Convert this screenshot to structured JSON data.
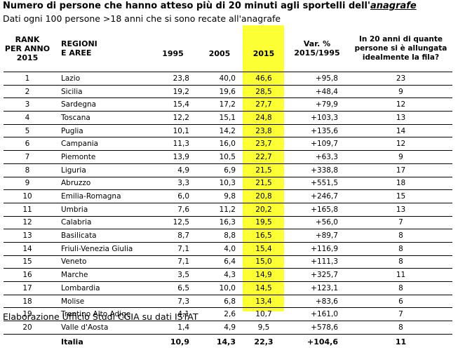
{
  "title": {
    "main": "Numero di persone che hanno atteso più di 20 minuti agli sportelli dell'",
    "emph": "anagrafe"
  },
  "subtitle": "Dati ogni 100 persone >18 anni che si sono recate all'anagrafe",
  "headers": {
    "rank": [
      "RANK",
      "PER ANNO",
      "2015"
    ],
    "region": [
      "REGIONI",
      "E AREE"
    ],
    "y1995": "1995",
    "y2005": "2005",
    "y2015": "2015",
    "var": [
      "Var. %",
      "2015/1995"
    ],
    "question": [
      "In 20 anni di quante",
      "persone si è allungata",
      "idealmente la fila?"
    ]
  },
  "highlight_color": "#fcff33",
  "rows": [
    {
      "rank": "1",
      "region": "Lazio",
      "y1995": "23,8",
      "y2005": "40,0",
      "y2015": "46,6",
      "var": "+95,8",
      "people": "23"
    },
    {
      "rank": "2",
      "region": "Sicilia",
      "y1995": "19,2",
      "y2005": "19,6",
      "y2015": "28,5",
      "var": "+48,4",
      "people": "9"
    },
    {
      "rank": "3",
      "region": "Sardegna",
      "y1995": "15,4",
      "y2005": "17,2",
      "y2015": "27,7",
      "var": "+79,9",
      "people": "12"
    },
    {
      "rank": "4",
      "region": "Toscana",
      "y1995": "12,2",
      "y2005": "15,1",
      "y2015": "24,8",
      "var": "+103,3",
      "people": "13"
    },
    {
      "rank": "5",
      "region": "Puglia",
      "y1995": "10,1",
      "y2005": "14,2",
      "y2015": "23,8",
      "var": "+135,6",
      "people": "14"
    },
    {
      "rank": "6",
      "region": "Campania",
      "y1995": "11,3",
      "y2005": "16,0",
      "y2015": "23,7",
      "var": "+109,7",
      "people": "12"
    },
    {
      "rank": "7",
      "region": "Piemonte",
      "y1995": "13,9",
      "y2005": "10,5",
      "y2015": "22,7",
      "var": "+63,3",
      "people": "9"
    },
    {
      "rank": "8",
      "region": "Liguria",
      "y1995": "4,9",
      "y2005": "6,9",
      "y2015": "21,5",
      "var": "+338,8",
      "people": "17"
    },
    {
      "rank": "9",
      "region": "Abruzzo",
      "y1995": "3,3",
      "y2005": "10,3",
      "y2015": "21,5",
      "var": "+551,5",
      "people": "18"
    },
    {
      "rank": "10",
      "region": "Emilia-Romagna",
      "y1995": "6,0",
      "y2005": "9,8",
      "y2015": "20,8",
      "var": "+246,7",
      "people": "15"
    },
    {
      "rank": "11",
      "region": "Umbria",
      "y1995": "7,6",
      "y2005": "11,2",
      "y2015": "20,2",
      "var": "+165,8",
      "people": "13"
    },
    {
      "rank": "12",
      "region": "Calabria",
      "y1995": "12,5",
      "y2005": "16,3",
      "y2015": "19,5",
      "var": "+56,0",
      "people": "7"
    },
    {
      "rank": "13",
      "region": "Basilicata",
      "y1995": "8,7",
      "y2005": "8,8",
      "y2015": "16,5",
      "var": "+89,7",
      "people": "8"
    },
    {
      "rank": "14",
      "region": "Friuli-Venezia Giulia",
      "y1995": "7,1",
      "y2005": "4,0",
      "y2015": "15,4",
      "var": "+116,9",
      "people": "8"
    },
    {
      "rank": "15",
      "region": "Veneto",
      "y1995": "7,1",
      "y2005": "6,4",
      "y2015": "15,0",
      "var": "+111,3",
      "people": "8"
    },
    {
      "rank": "16",
      "region": "Marche",
      "y1995": "3,5",
      "y2005": "4,3",
      "y2015": "14,9",
      "var": "+325,7",
      "people": "11"
    },
    {
      "rank": "17",
      "region": "Lombardia",
      "y1995": "6,5",
      "y2005": "10,0",
      "y2015": "14,5",
      "var": "+123,1",
      "people": "8"
    },
    {
      "rank": "18",
      "region": "Molise",
      "y1995": "7,3",
      "y2005": "6,8",
      "y2015": "13,4",
      "var": "+83,6",
      "people": "6"
    },
    {
      "rank": "19",
      "region": "Trentino Alto Adige",
      "y1995": "4,1",
      "y2005": "2,6",
      "y2015": "10,7",
      "var": "+161,0",
      "people": "7"
    },
    {
      "rank": "20",
      "region": "Valle d'Aosta",
      "y1995": "1,4",
      "y2005": "4,9",
      "y2015": "9,5",
      "var": "+578,6",
      "people": "8"
    }
  ],
  "total": {
    "region": "Italia",
    "y1995": "10,9",
    "y2005": "14,3",
    "y2015": "22,3",
    "var": "+104,6",
    "people": "11"
  },
  "source": "Elaborazione Ufficio Studi CGIA su dati ISTAT"
}
